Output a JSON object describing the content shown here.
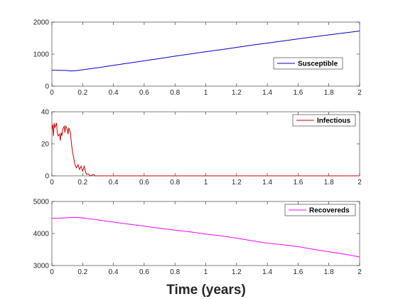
{
  "figure": {
    "xlabel": "Time (years)"
  },
  "chart_data": [
    {
      "type": "line",
      "xlim": [
        0,
        2
      ],
      "ylim": [
        0,
        2000
      ],
      "xticks": [
        0,
        0.2,
        0.4,
        0.6,
        0.8,
        1,
        1.2,
        1.4,
        1.6,
        1.8,
        2
      ],
      "yticks": [
        0,
        1000,
        2000
      ],
      "legend_position": "right",
      "grid": false,
      "series": [
        {
          "name": "Susceptible",
          "color": "#0000cc",
          "x": [
            0,
            0.05,
            0.1,
            0.12,
            0.15,
            0.2,
            0.25,
            0.3,
            0.4,
            0.5,
            0.6,
            0.7,
            0.8,
            0.9,
            1.0,
            1.1,
            1.2,
            1.3,
            1.4,
            1.5,
            1.6,
            1.7,
            1.8,
            1.9,
            2.0
          ],
          "y": [
            495,
            495,
            490,
            470,
            480,
            510,
            545,
            575,
            650,
            720,
            790,
            860,
            935,
            1005,
            1075,
            1140,
            1210,
            1280,
            1345,
            1410,
            1475,
            1540,
            1600,
            1660,
            1720
          ]
        }
      ]
    },
    {
      "type": "line",
      "xlim": [
        0,
        2
      ],
      "ylim": [
        0,
        40
      ],
      "xticks": [
        0,
        0.2,
        0.4,
        0.6,
        0.8,
        1,
        1.2,
        1.4,
        1.6,
        1.8,
        2
      ],
      "yticks": [
        0,
        20,
        40
      ],
      "legend_position": "top-right",
      "grid": false,
      "series": [
        {
          "name": "Infectious",
          "color": "#cc0000",
          "x": [
            0,
            0.005,
            0.01,
            0.015,
            0.02,
            0.03,
            0.035,
            0.04,
            0.05,
            0.055,
            0.06,
            0.065,
            0.07,
            0.08,
            0.085,
            0.09,
            0.1,
            0.105,
            0.11,
            0.12,
            0.13,
            0.14,
            0.15,
            0.155,
            0.16,
            0.17,
            0.18,
            0.19,
            0.2,
            0.21,
            0.22,
            0.225,
            0.23,
            0.24,
            0.25,
            0.27,
            0.28,
            0.3,
            2.0
          ],
          "y": [
            29,
            32,
            25,
            33,
            30,
            33,
            27,
            25,
            26,
            22,
            27,
            25,
            29,
            31,
            27,
            31,
            29,
            26,
            30,
            27,
            18,
            12,
            7,
            6,
            5,
            7,
            4,
            6,
            3,
            6,
            2,
            1,
            1,
            1,
            0,
            1,
            0,
            0,
            0
          ]
        }
      ]
    },
    {
      "type": "line",
      "xlim": [
        0,
        2
      ],
      "ylim": [
        3000,
        5000
      ],
      "xticks": [
        0,
        0.2,
        0.4,
        0.6,
        0.8,
        1,
        1.2,
        1.4,
        1.6,
        1.8,
        2
      ],
      "yticks": [
        3000,
        4000,
        5000
      ],
      "legend_position": "top-right",
      "grid": false,
      "series": [
        {
          "name": "Recovereds",
          "color": "#ff00ff",
          "x": [
            0,
            0.05,
            0.1,
            0.15,
            0.2,
            0.3,
            0.4,
            0.5,
            0.6,
            0.7,
            0.8,
            0.9,
            1.0,
            1.1,
            1.2,
            1.3,
            1.4,
            1.5,
            1.6,
            1.7,
            1.8,
            1.9,
            2.0
          ],
          "y": [
            4475,
            4480,
            4490,
            4505,
            4485,
            4425,
            4355,
            4290,
            4230,
            4165,
            4105,
            4050,
            3985,
            3925,
            3855,
            3775,
            3700,
            3650,
            3590,
            3505,
            3430,
            3355,
            3270
          ]
        }
      ]
    }
  ]
}
